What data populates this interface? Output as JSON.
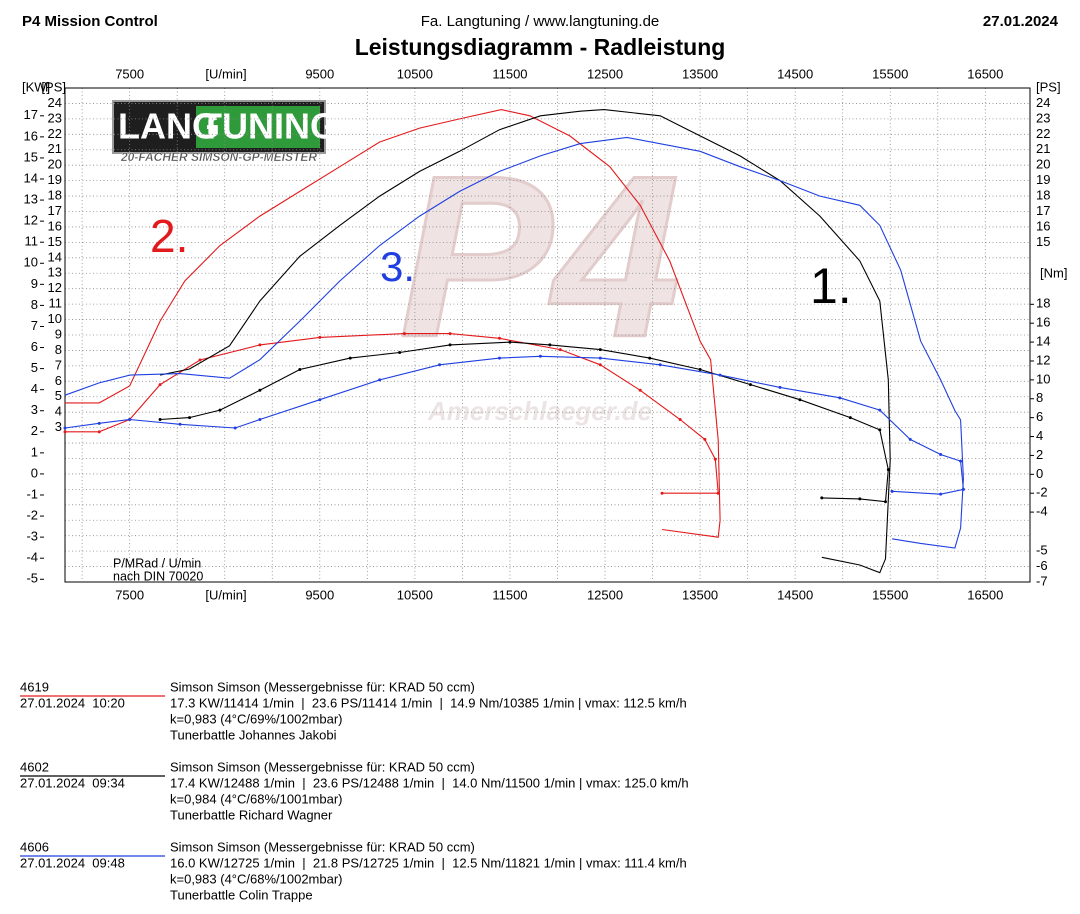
{
  "header": {
    "left": "P4 Mission Control",
    "center": "Fa. Langtuning / www.langtuning.de",
    "right": "27.01.2024"
  },
  "chart_data": {
    "type": "line",
    "title": "Leistungsdiagramm - Radleistung",
    "x_label": "[U/min]",
    "y_label": "[PS]",
    "y2_label": "[Nm]",
    "y3_label": "[KW]",
    "xlim": [
      6820,
      16970
    ],
    "xticks": [
      7500,
      9500,
      10500,
      11500,
      12500,
      13500,
      14500,
      15500,
      16500
    ],
    "xgrid": [
      7000,
      7500,
      8000,
      8500,
      9000,
      9500,
      10000,
      10500,
      11000,
      11500,
      12000,
      12500,
      13000,
      13500,
      14000,
      14500,
      15000,
      15500,
      16000,
      16500
    ],
    "ylim": [
      -7,
      25
    ],
    "yticks": [
      24,
      23,
      22,
      21,
      20,
      19,
      18,
      17,
      16,
      15,
      14,
      13,
      12,
      11,
      10,
      9,
      8,
      7,
      6,
      5,
      4,
      3
    ],
    "yticks_right": [
      24,
      23,
      22,
      21,
      20,
      19,
      18,
      17,
      16,
      15,
      -5,
      -6,
      -7
    ],
    "ygrid": [
      -7,
      -6,
      -5,
      -4,
      -3,
      -2,
      -1,
      0,
      1,
      2,
      3,
      4,
      5,
      6,
      7,
      8,
      9,
      10,
      11,
      12,
      13,
      14,
      15,
      16,
      17,
      18,
      19,
      20,
      21,
      22,
      23,
      24
    ],
    "y2lim": [
      -11.4,
      40.9
    ],
    "y2ticks": [
      18,
      16,
      14,
      12,
      10,
      8,
      6,
      4,
      2,
      0,
      -2,
      -4
    ],
    "y3lim": [
      -5.13,
      18.32
    ],
    "y3ticks": [
      17,
      16,
      15,
      14,
      13,
      12,
      11,
      10,
      9,
      8,
      7,
      6,
      5,
      4,
      3,
      2,
      1,
      0,
      -1,
      -2,
      -3,
      -4,
      -5
    ],
    "grid": true,
    "note": [
      "P/MRad / U/min",
      "nach DIN 70020"
    ],
    "annotations": [
      {
        "text": "1.",
        "color": "#000000"
      },
      {
        "text": "2.",
        "color": "#e31a1c"
      },
      {
        "text": "3.",
        "color": "#1f3fe0"
      }
    ],
    "series": [
      {
        "color": "#e31a1c",
        "x": [
          6820,
          7180,
          7500,
          7820,
          8080,
          8450,
          8870,
          9290,
          9710,
          10130,
          10550,
          10970,
          11410,
          11710,
          12130,
          12550,
          12870,
          13180,
          13500,
          13610,
          13690,
          13710,
          13690,
          13100
        ],
        "values": [
          4.6,
          4.6,
          5.7,
          9.9,
          12.5,
          14.8,
          16.7,
          18.3,
          19.9,
          21.5,
          22.4,
          23.0,
          23.6,
          23.2,
          21.9,
          19.9,
          17.4,
          13.8,
          8.6,
          7.4,
          2.2,
          -3.0,
          -4.1,
          -3.6
        ]
      },
      {
        "color": "#e31a1c",
        "axis": "y2",
        "x": [
          6820,
          7180,
          7500,
          7820,
          8240,
          8870,
          9500,
          10390,
          10870,
          11390,
          12030,
          12450,
          12870,
          13290,
          13550,
          13660,
          13690,
          13100
        ],
        "values": [
          4.5,
          4.5,
          5.8,
          9.5,
          12.1,
          13.7,
          14.5,
          14.9,
          14.9,
          14.4,
          13.2,
          11.6,
          8.9,
          5.8,
          3.7,
          1.6,
          -2.0,
          -2.0
        ]
      },
      {
        "color": "#000000",
        "x": [
          7820,
          8130,
          8550,
          8870,
          9290,
          9710,
          10130,
          10550,
          10970,
          11390,
          11820,
          12240,
          12490,
          13080,
          13500,
          13920,
          14340,
          14760,
          15180,
          15390,
          15480,
          15500,
          15450,
          15390,
          15180,
          14780
        ],
        "values": [
          6.4,
          6.8,
          8.3,
          11.2,
          14.1,
          16.1,
          18.0,
          19.6,
          20.9,
          22.3,
          23.2,
          23.5,
          23.6,
          23.2,
          21.9,
          20.6,
          19.0,
          16.7,
          13.8,
          11.2,
          6.1,
          0.9,
          -5.5,
          -6.4,
          -5.9,
          -5.4
        ]
      },
      {
        "color": "#000000",
        "axis": "y2",
        "x": [
          7820,
          8130,
          8450,
          8870,
          9290,
          9820,
          10340,
          10870,
          11500,
          11920,
          12450,
          12970,
          13500,
          14030,
          14550,
          15080,
          15390,
          15480,
          15450,
          15180,
          14780
        ],
        "values": [
          5.8,
          6.0,
          6.8,
          8.9,
          11.1,
          12.3,
          12.9,
          13.7,
          14.0,
          13.7,
          13.2,
          12.3,
          11.1,
          9.5,
          7.9,
          6.0,
          4.7,
          0.5,
          -2.9,
          -2.6,
          -2.5
        ]
      },
      {
        "color": "#1f3fe0",
        "x": [
          6820,
          7180,
          7500,
          8030,
          8550,
          8870,
          9290,
          9710,
          10130,
          10550,
          10970,
          11390,
          11820,
          12240,
          12730,
          13500,
          13920,
          14340,
          14760,
          15180,
          15390,
          15610,
          15820,
          16030,
          16180,
          16240,
          16270,
          16240,
          16180,
          15820,
          15520
        ],
        "values": [
          5.1,
          5.9,
          6.4,
          6.5,
          6.2,
          7.4,
          9.9,
          12.5,
          14.8,
          16.7,
          18.3,
          19.6,
          20.6,
          21.4,
          21.8,
          20.9,
          19.9,
          19.0,
          18.0,
          17.4,
          16.1,
          13.2,
          8.6,
          6.1,
          4.1,
          3.5,
          -0.3,
          -3.5,
          -4.8,
          -4.5,
          -4.2
        ]
      },
      {
        "color": "#1f3fe0",
        "axis": "y2",
        "x": [
          6820,
          7180,
          7500,
          8030,
          8610,
          8870,
          9500,
          10130,
          10760,
          11390,
          11820,
          12450,
          13080,
          13710,
          14340,
          14970,
          15390,
          15710,
          16030,
          16240,
          16270,
          16030,
          15520
        ],
        "values": [
          4.9,
          5.4,
          5.8,
          5.3,
          4.9,
          5.8,
          7.9,
          10.0,
          11.6,
          12.3,
          12.5,
          12.3,
          11.6,
          10.5,
          9.2,
          8.1,
          6.8,
          3.7,
          2.1,
          1.4,
          -1.6,
          -2.1,
          -1.8
        ]
      }
    ]
  },
  "runs": [
    {
      "id": "4619",
      "color": "#e31a1c",
      "datetime": "27.01.2024  10:20",
      "lines": [
        "Simson Simson (Messergebnisse für: KRAD 50 ccm)",
        "17.3 KW/11414 1/min  |  23.6 PS/11414 1/min  |  14.9 Nm/10385 1/min | vmax: 112.5 km/h",
        "k=0,983 (4°C/69%/1002mbar)",
        "Tunerbattle Johannes Jakobi"
      ]
    },
    {
      "id": "4602",
      "color": "#000000",
      "datetime": "27.01.2024  09:34",
      "lines": [
        "Simson Simson (Messergebnisse für: KRAD 50 ccm)",
        "17.4 KW/12488 1/min  |  23.6 PS/12488 1/min  |  14.0 Nm/11500 1/min | vmax: 125.0 km/h",
        "k=0,984 (4°C/68%/1001mbar)",
        "Tunerbattle Richard Wagner"
      ]
    },
    {
      "id": "4606",
      "color": "#1f3fe0",
      "datetime": "27.01.2024  09:48",
      "lines": [
        "Simson Simson (Messergebnisse für: KRAD 50 ccm)",
        "16.0 KW/12725 1/min  |  21.8 PS/12725 1/min  |  12.5 Nm/11821 1/min | vmax: 111.4 km/h",
        "k=0,983 (4°C/68%/1002mbar)",
        "Tunerbattle Colin Trappe"
      ]
    }
  ],
  "logo": {
    "brand1": "LANG",
    "brand2": "TUNING",
    "slogan": "20-FACHER SIMSON-GP-MEISTER"
  },
  "watermark": {
    "mark": "P4",
    "site": "Amerschlaeger.de"
  }
}
